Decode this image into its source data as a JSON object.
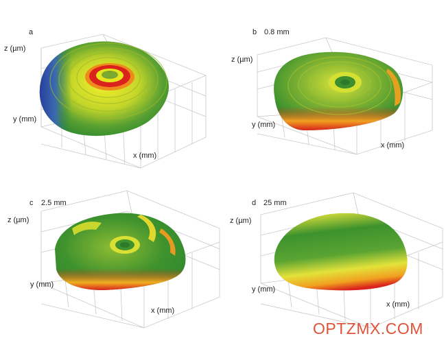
{
  "panels": [
    {
      "letter": "a",
      "scale": "",
      "z_label": "z (µm)",
      "y_label": "y (mm)",
      "x_label": "x (mm)"
    },
    {
      "letter": "b",
      "scale": "0.8 mm",
      "z_label": "z (µm)",
      "y_label": "y (mm)",
      "x_label": "x (mm)"
    },
    {
      "letter": "c",
      "scale": "2.5 mm",
      "z_label": "z (µm)",
      "y_label": "y (mm)",
      "x_label": "x (mm)"
    },
    {
      "letter": "d",
      "scale": "25 mm",
      "z_label": "z (µm)",
      "y_label": "y (mm)",
      "x_label": "x (mm)"
    }
  ],
  "watermark": "OPTZMX.COM",
  "colors": {
    "blue": "#2a3f9e",
    "green": "#2e8a2e",
    "yellow": "#e6e61e",
    "red": "#d9231c",
    "grid": "#c8c8c8"
  }
}
